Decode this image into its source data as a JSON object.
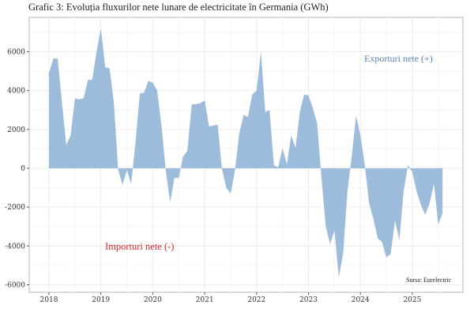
{
  "title": "Grafic 3: Evoluția fluxurilor nete lunare de electricitate în Germania (GWh)",
  "chart_data": {
    "type": "area",
    "title": "Grafic 3: Evoluția fluxurilor nete lunare de electricitate în Germania (GWh)",
    "xlabel": "",
    "ylabel": "",
    "ylim": [
      -6300,
      7700
    ],
    "xlim": [
      2017.63,
      2026.0
    ],
    "grid": true,
    "fill_color": "#9dbcdb",
    "y_ticks": [
      "6000",
      "4000",
      "2000",
      "0",
      "-2000",
      "-4000",
      "-6000"
    ],
    "y_tick_values": [
      6000,
      4000,
      2000,
      0,
      -2000,
      -4000,
      -6000
    ],
    "x_ticks": [
      "2018",
      "2019",
      "2020",
      "2021",
      "2022",
      "2023",
      "2024",
      "2025"
    ],
    "x_tick_values": [
      2018,
      2019,
      2020,
      2021,
      2022,
      2023,
      2024,
      2025
    ],
    "start": "2018-01",
    "values": [
      4900,
      5650,
      5650,
      3400,
      1200,
      1700,
      3600,
      3550,
      3600,
      4550,
      4550,
      6000,
      7200,
      5200,
      5150,
      3400,
      -100,
      -850,
      -100,
      -800,
      1300,
      3850,
      3900,
      4500,
      4400,
      4000,
      2200,
      -100,
      -1750,
      -500,
      -500,
      600,
      900,
      3300,
      3300,
      3350,
      3500,
      2150,
      2200,
      2250,
      -50,
      -1000,
      -1300,
      -100,
      1800,
      2750,
      2650,
      3800,
      4000,
      6000,
      2900,
      3000,
      150,
      50,
      1050,
      200,
      1700,
      1050,
      2900,
      3800,
      3750,
      3100,
      2300,
      -500,
      -3000,
      -3900,
      -3200,
      -5600,
      -4400,
      -1200,
      600,
      2700,
      1700,
      200,
      -1800,
      -2600,
      -3600,
      -3800,
      -4600,
      -4400,
      -2700,
      -3700,
      -1200,
      150,
      -200,
      -1200,
      -1900,
      -2400,
      -1800,
      -800,
      -2900,
      -2300
    ],
    "annotations": [
      {
        "text": "Exporturi nete (+)",
        "color": "#5b86b5"
      },
      {
        "text": "Importuri nete (-)",
        "color": "#d42b2b"
      },
      {
        "text": "Sursa: Eurelectric",
        "color": "#222222"
      }
    ]
  }
}
